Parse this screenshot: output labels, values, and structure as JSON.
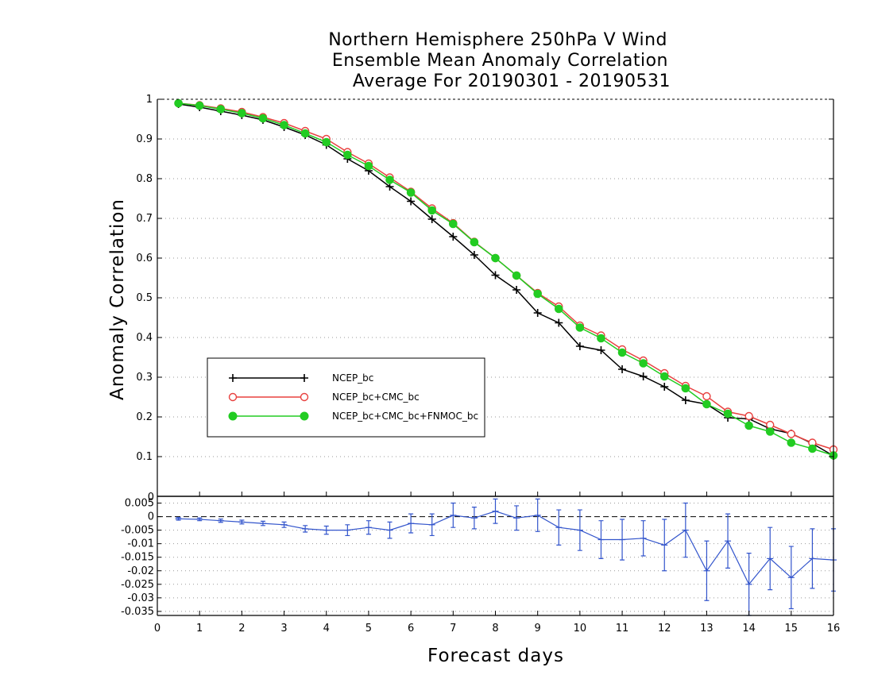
{
  "title": {
    "line1": "Northern Hemisphere 250hPa V Wind",
    "line2": "Ensemble Mean Anomaly Correlation",
    "line3": "Average For 20190301 - 20190531"
  },
  "chart_data": [
    {
      "type": "line",
      "title": "Northern Hemisphere 250hPa V Wind Ensemble Mean Anomaly Correlation Average For 20190301 - 20190531",
      "ylabel": "Anomaly Correlation",
      "xlabel": "",
      "xlim": [
        0,
        16
      ],
      "ylim": [
        0,
        1
      ],
      "yticks": [
        "0.1",
        "0.2",
        "0.3",
        "0.4",
        "0.5",
        "0.6",
        "0.7",
        "0.8",
        "0.9",
        "1"
      ],
      "grid": true,
      "legend_position": "lower-left",
      "x": [
        0.5,
        1,
        1.5,
        2,
        2.5,
        3,
        3.5,
        4,
        4.5,
        5,
        5.5,
        6,
        6.5,
        7,
        7.5,
        8,
        8.5,
        9,
        9.5,
        10,
        10.5,
        11,
        11.5,
        12,
        12.5,
        13,
        13.5,
        14,
        14.5,
        15,
        15.5,
        16
      ],
      "series": [
        {
          "name": "NCEP_bc",
          "color": "#000000",
          "marker": "plus",
          "values": [
            0.988,
            0.98,
            0.97,
            0.96,
            0.948,
            0.93,
            0.91,
            0.885,
            0.85,
            0.82,
            0.78,
            0.743,
            0.698,
            0.654,
            0.608,
            0.557,
            0.52,
            0.462,
            0.437,
            0.378,
            0.368,
            0.32,
            0.302,
            0.276,
            0.242,
            0.232,
            0.198,
            0.195,
            0.17,
            0.158,
            0.133,
            0.102
          ]
        },
        {
          "name": "NCEP_bc+CMC_bc",
          "color": "#e8413f",
          "marker": "open-circle",
          "values": [
            0.99,
            0.985,
            0.977,
            0.968,
            0.955,
            0.94,
            0.92,
            0.9,
            0.867,
            0.838,
            0.803,
            0.767,
            0.725,
            0.688,
            0.641,
            0.6,
            0.556,
            0.512,
            0.478,
            0.43,
            0.405,
            0.37,
            0.342,
            0.31,
            0.278,
            0.252,
            0.213,
            0.202,
            0.18,
            0.157,
            0.135,
            0.118
          ]
        },
        {
          "name": "NCEP_bc+CMC_bc+FNMOC_bc",
          "color": "#22cc22",
          "marker": "filled-circle",
          "values": [
            0.99,
            0.984,
            0.975,
            0.965,
            0.952,
            0.935,
            0.914,
            0.892,
            0.86,
            0.832,
            0.797,
            0.765,
            0.72,
            0.686,
            0.64,
            0.6,
            0.556,
            0.51,
            0.472,
            0.425,
            0.398,
            0.362,
            0.335,
            0.302,
            0.272,
            0.232,
            0.208,
            0.178,
            0.163,
            0.135,
            0.12,
            0.103
          ]
        }
      ]
    },
    {
      "type": "line",
      "title": "",
      "xlabel": "Forecast days",
      "ylabel": "",
      "xlim": [
        0,
        16
      ],
      "ylim": [
        -0.0365,
        0.0075
      ],
      "xticks": [
        "0",
        "1",
        "2",
        "3",
        "4",
        "5",
        "6",
        "7",
        "8",
        "9",
        "10",
        "11",
        "12",
        "13",
        "14",
        "15",
        "16"
      ],
      "yticks": [
        "0.005",
        "0",
        "-0.005",
        "-0.01",
        "-0.015",
        "-0.02",
        "-0.025",
        "-0.03",
        "-0.035"
      ],
      "top_label": "0",
      "grid": true,
      "zero_line": "dashed",
      "x": [
        0.5,
        1,
        1.5,
        2,
        2.5,
        3,
        3.5,
        4,
        4.5,
        5,
        5.5,
        6,
        6.5,
        7,
        7.5,
        8,
        8.5,
        9,
        9.5,
        10,
        10.5,
        11,
        11.5,
        12,
        12.5,
        13,
        13.5,
        14,
        14.5,
        15,
        15.5,
        16
      ],
      "series": [
        {
          "name": "",
          "color": "#3355cc",
          "marker": "error-bar",
          "values": [
            -0.0008,
            -0.001,
            -0.0015,
            -0.002,
            -0.0025,
            -0.003,
            -0.0045,
            -0.005,
            -0.005,
            -0.004,
            -0.005,
            -0.0025,
            -0.003,
            0.0005,
            -0.0005,
            0.002,
            -0.0005,
            0.0005,
            -0.004,
            -0.005,
            -0.0085,
            -0.0085,
            -0.008,
            -0.0105,
            -0.005,
            -0.02,
            -0.009,
            -0.025,
            -0.0155,
            -0.0225,
            -0.0155,
            -0.016
          ],
          "error": [
            0.0005,
            0.0005,
            0.0006,
            0.0007,
            0.0008,
            0.001,
            0.0012,
            0.0015,
            0.002,
            0.0025,
            0.003,
            0.0035,
            0.004,
            0.0045,
            0.004,
            0.0045,
            0.0045,
            0.006,
            0.0065,
            0.0075,
            0.007,
            0.0075,
            0.0065,
            0.0095,
            0.01,
            0.011,
            0.01,
            0.0115,
            0.0115,
            0.0115,
            0.011,
            0.0115
          ]
        }
      ]
    }
  ]
}
